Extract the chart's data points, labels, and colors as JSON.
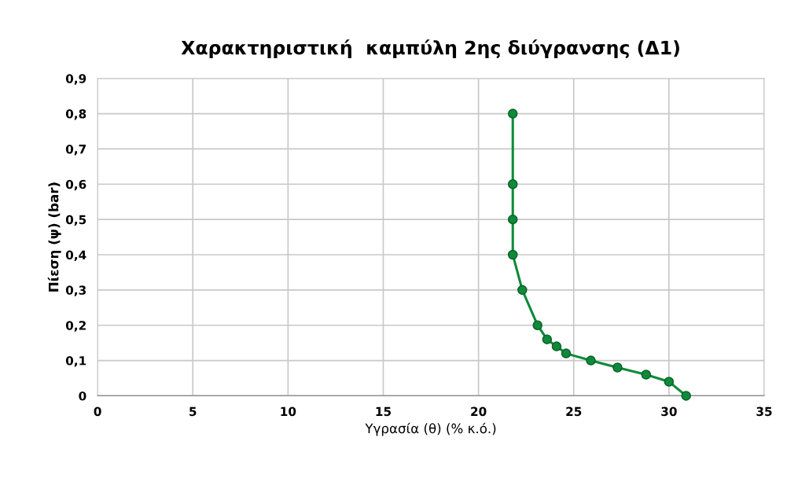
{
  "chart_data": {
    "type": "line",
    "title": "Χαρακτηριστική  καμπύλη 2ης διύγρανσης (Δ1)",
    "xlabel": "Υγρασία (θ) (% κ.ό.)",
    "ylabel": "Πίεση (ψ) (bar)",
    "series": [
      {
        "color": "#0e8a3a",
        "x": [
          21.8,
          21.8,
          21.8,
          21.8,
          22.3,
          23.1,
          23.6,
          24.1,
          24.6,
          25.9,
          27.3,
          28.8,
          30.0,
          30.9
        ],
        "values": [
          0.8,
          0.6,
          0.5,
          0.4,
          0.3,
          0.2,
          0.16,
          0.14,
          0.12,
          0.1,
          0.08,
          0.06,
          0.04,
          0
        ]
      }
    ],
    "xlim": [
      0,
      35
    ],
    "xticks": [
      0,
      5,
      10,
      15,
      20,
      25,
      30,
      35
    ],
    "ylim": [
      0,
      0.9
    ],
    "yticks": [
      {
        "value": 0,
        "label": "0"
      },
      {
        "value": 0.1,
        "label": "0,1"
      },
      {
        "value": 0.2,
        "label": "0,2"
      },
      {
        "value": 0.3,
        "label": "0,3"
      },
      {
        "value": 0.4,
        "label": "0,4"
      },
      {
        "value": 0.5,
        "label": "0,5"
      },
      {
        "value": 0.6,
        "label": "0,6"
      },
      {
        "value": 0.7,
        "label": "0,7"
      },
      {
        "value": 0.8,
        "label": "0,8"
      },
      {
        "value": 0.9,
        "label": "0,9"
      }
    ],
    "grid": true,
    "marker": "circle",
    "line_style": "solid"
  }
}
